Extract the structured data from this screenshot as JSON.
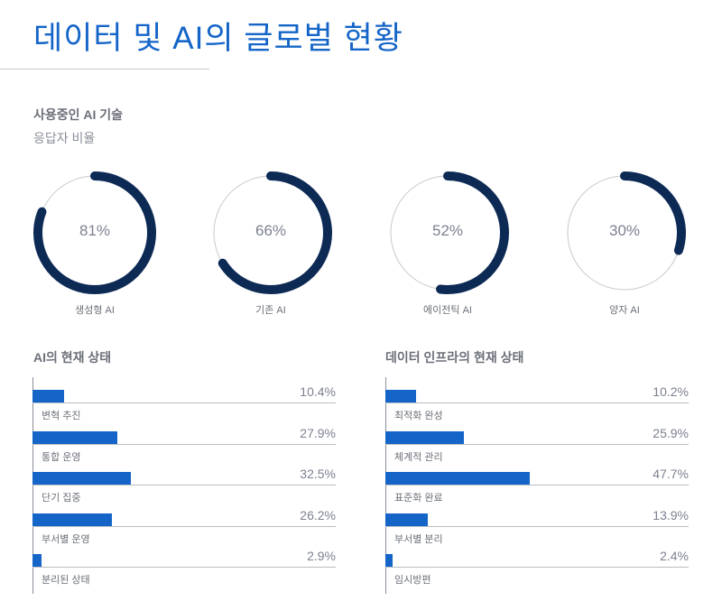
{
  "header": {
    "title": "데이터 및 AI의 글로벌 현황"
  },
  "colors": {
    "title": "#1565c8",
    "ring": "#0d2a55",
    "bar": "#1565c8",
    "track": "#c8c8c8"
  },
  "usage": {
    "title": "사용중인 AI 기술",
    "subtitle": "응답자 비율",
    "items": [
      {
        "label": "생성형 AI",
        "value": 81,
        "display": "81%"
      },
      {
        "label": "기존 AI",
        "value": 66,
        "display": "66%"
      },
      {
        "label": "에이전틱 AI",
        "value": 52,
        "display": "52%"
      },
      {
        "label": "양자 AI",
        "value": 30,
        "display": "30%"
      }
    ]
  },
  "chart_data": [
    {
      "type": "bar",
      "title": "AI의 현재 상태",
      "categories": [
        "변혁 추진",
        "통합 운영",
        "단기 집중",
        "부서별 운영",
        "분리된 상태"
      ],
      "values": [
        10.4,
        27.9,
        32.5,
        26.2,
        2.9
      ],
      "labels": [
        "10.4%",
        "27.9%",
        "32.5%",
        "26.2%",
        "2.9%"
      ],
      "xlim": [
        0,
        100
      ]
    },
    {
      "type": "bar",
      "title": "데이터 인프라의 현재 상태",
      "categories": [
        "최적화 완성",
        "체계적 관리",
        "표준화 완료",
        "부서별 분리",
        "임시방편"
      ],
      "values": [
        10.2,
        25.9,
        47.7,
        13.9,
        2.4
      ],
      "labels": [
        "10.2%",
        "25.9%",
        "47.7%",
        "13.9%",
        "2.4%"
      ],
      "xlim": [
        0,
        100
      ]
    }
  ]
}
